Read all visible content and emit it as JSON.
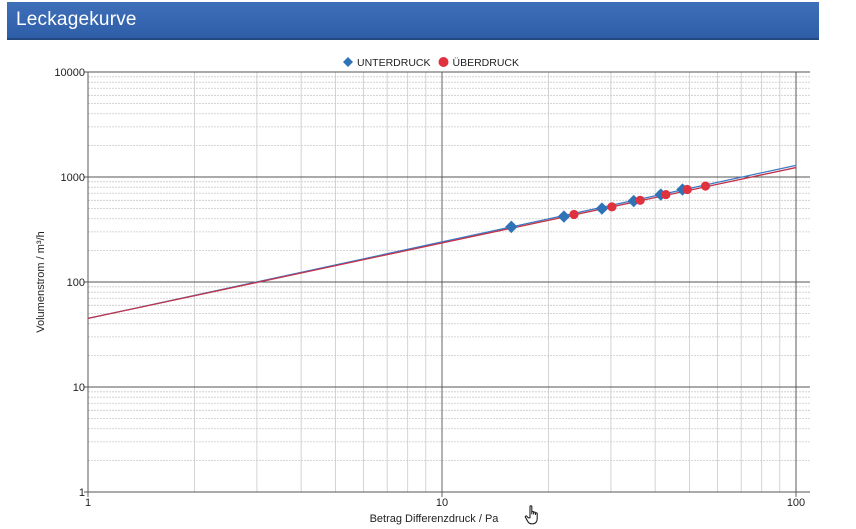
{
  "header": {
    "title": "Leckagekurve"
  },
  "colors": {
    "title_bar": "#3468b4",
    "unterdruck": "#2f73b6",
    "ueberdruck": "#e0313f",
    "fit_line_a": "#3d79c4",
    "fit_line_b": "#c0334a"
  },
  "chart_data": {
    "type": "scatter",
    "title": "",
    "xlabel": "Betrag Differenzdruck / Pa",
    "ylabel": "Volumenstrom  / m³/h",
    "xscale": "log",
    "yscale": "log",
    "xlim": [
      1,
      100
    ],
    "ylim": [
      1,
      10000
    ],
    "x_ticks": [
      "1",
      "10",
      "100"
    ],
    "y_ticks": [
      "1",
      "10",
      "100",
      "1000",
      "10000"
    ],
    "grid": true,
    "legend_position": "top-center",
    "series": [
      {
        "name": "UNTERDRUCK",
        "marker": "diamond",
        "color": "#2f73b6",
        "x": [
          15.7,
          22.1,
          28.3,
          34.8,
          41.5,
          47.8
        ],
        "y": [
          335,
          420,
          500,
          590,
          680,
          760
        ]
      },
      {
        "name": "ÜBERDRUCK",
        "marker": "circle",
        "color": "#e0313f",
        "x": [
          23.6,
          30.2,
          36.3,
          42.9,
          49.3,
          55.5
        ],
        "y": [
          440,
          520,
          600,
          680,
          760,
          820
        ]
      }
    ],
    "fit_lines": [
      {
        "color": "#3d79c4",
        "x": [
          1,
          100
        ],
        "y": [
          45,
          1290
        ]
      },
      {
        "color": "#c0334a",
        "x": [
          1,
          100
        ],
        "y": [
          45,
          1230
        ]
      }
    ]
  },
  "ui": {
    "cursor": "hand-cursor-icon"
  }
}
